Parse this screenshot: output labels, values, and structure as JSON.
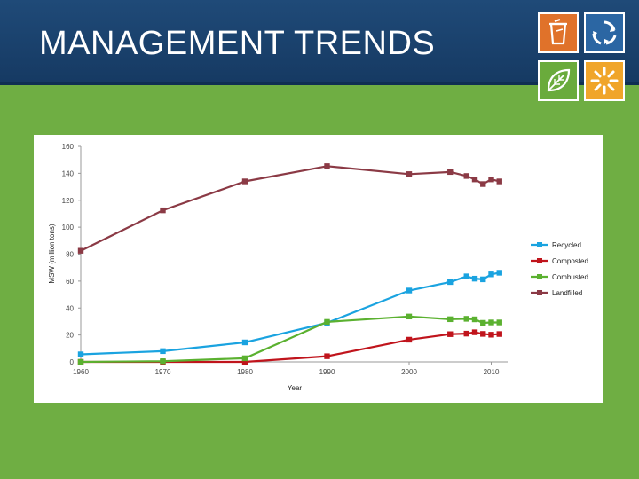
{
  "slide": {
    "title": "MANAGEMENT TRENDS",
    "colors": {
      "background": "#6fae43",
      "header": "#1f4a78"
    },
    "icons": [
      "trash-can-icon",
      "recycle-arrows-icon",
      "leaf-icon",
      "sun-burst-icon"
    ]
  },
  "chart_data": {
    "type": "line",
    "title": "",
    "xlabel": "Year",
    "ylabel": "MSW (million tons)",
    "xlim": [
      1960,
      2012
    ],
    "ylim": [
      0,
      160
    ],
    "xticks": [
      "1960",
      "1970",
      "1980",
      "1990",
      "2000",
      "2010"
    ],
    "yticks": [
      "0",
      "20",
      "40",
      "60",
      "80",
      "100",
      "120",
      "140",
      "160"
    ],
    "grid": false,
    "legend": "right",
    "x": [
      1960,
      1970,
      1980,
      1990,
      2000,
      2005,
      2007,
      2008,
      2009,
      2010,
      2011
    ],
    "series": [
      {
        "name": "Recycled",
        "color": "#1aa3e0",
        "values": [
          5.6,
          8.0,
          14.5,
          29.0,
          53.0,
          59.3,
          63.5,
          61.8,
          61.3,
          65.0,
          66.2
        ]
      },
      {
        "name": "Composted",
        "color": "#c0141c",
        "values": [
          0,
          0,
          0,
          4.2,
          16.5,
          20.6,
          21.0,
          22.0,
          20.8,
          20.2,
          20.7
        ]
      },
      {
        "name": "Combusted",
        "color": "#5bb130",
        "values": [
          0,
          0.5,
          2.7,
          29.7,
          33.7,
          31.7,
          32.0,
          31.6,
          29.0,
          29.3,
          29.3
        ]
      },
      {
        "name": "Landfilled",
        "color": "#8b3a45",
        "values": [
          82.5,
          112.5,
          134.0,
          145.3,
          139.4,
          141.0,
          138.0,
          135.5,
          132.0,
          135.5,
          134.0
        ]
      }
    ]
  }
}
